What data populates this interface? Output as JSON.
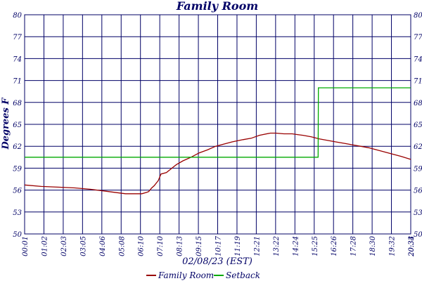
{
  "chart_data": {
    "type": "line",
    "title": "Family Room",
    "ylabel": "Degrees F",
    "xlabel": "02/08/23 (EST)",
    "ylim": [
      50,
      80
    ],
    "yticks": [
      50,
      53,
      56,
      59,
      62,
      65,
      68,
      71,
      74,
      77,
      80
    ],
    "ytick_labels": [
      "50",
      "53",
      "56",
      "59",
      "62",
      "65",
      "68",
      "71",
      "74",
      "77",
      "80"
    ],
    "xlim": [
      1,
      1414
    ],
    "xtick_labels": [
      "00:01",
      "01:02",
      "02:03",
      "03:05",
      "04:06",
      "05:08",
      "06:10",
      "07:10",
      "08:13",
      "09:15",
      "10:17",
      "11:19",
      "12:21",
      "13:22",
      "14:24",
      "15:25",
      "16:26",
      "17:28",
      "18:30",
      "19:32",
      "20:33",
      "20:34"
    ],
    "grid": true,
    "legend_position": "bottom-center",
    "colors": {
      "grid": "#000066",
      "background": "#ffffff"
    },
    "series": [
      {
        "name": "Family Room",
        "color": "#990000",
        "x": [
          1,
          62,
          123,
          185,
          246,
          308,
          370,
          430,
          448,
          455,
          466,
          475,
          490,
          500,
          520,
          550,
          557,
          580,
          610,
          640,
          670,
          700,
          730,
          760,
          800,
          830,
          860,
          900,
          920,
          950,
          980,
          1000,
          1020,
          1050,
          1080,
          1110,
          1140,
          1170,
          1200,
          1230,
          1260,
          1290,
          1320,
          1350,
          1380,
          1414
        ],
        "y": [
          56.7,
          56.5,
          56.4,
          56.3,
          56.1,
          55.8,
          55.5,
          55.5,
          55.7,
          55.8,
          56.3,
          56.6,
          57.3,
          58.2,
          58.4,
          59.3,
          59.5,
          60.0,
          60.5,
          61.1,
          61.5,
          62.0,
          62.3,
          62.6,
          62.9,
          63.1,
          63.5,
          63.8,
          63.8,
          63.7,
          63.7,
          63.6,
          63.5,
          63.3,
          63.0,
          62.8,
          62.6,
          62.4,
          62.2,
          62.0,
          61.8,
          61.5,
          61.2,
          60.9,
          60.6,
          60.2
        ],
        "values": [
          56.7,
          56.5,
          56.4,
          56.3,
          56.1,
          55.8,
          55.5,
          55.5,
          55.7,
          55.8,
          56.3,
          56.6,
          57.3,
          58.2,
          58.4,
          59.3,
          59.5,
          60.0,
          60.5,
          61.1,
          61.5,
          62.0,
          62.3,
          62.6,
          62.9,
          63.1,
          63.5,
          63.8,
          63.8,
          63.7,
          63.7,
          63.6,
          63.5,
          63.3,
          63.0,
          62.8,
          62.6,
          62.4,
          62.2,
          62.0,
          61.8,
          61.5,
          61.2,
          60.9,
          60.6,
          60.2
        ]
      },
      {
        "name": "Setback",
        "color": "#00aa00",
        "x": [
          1,
          1075,
          1076,
          1414
        ],
        "y": [
          60.5,
          60.5,
          70.0,
          70.0
        ],
        "values": [
          60.5,
          60.5,
          70.0,
          70.0
        ]
      }
    ]
  }
}
